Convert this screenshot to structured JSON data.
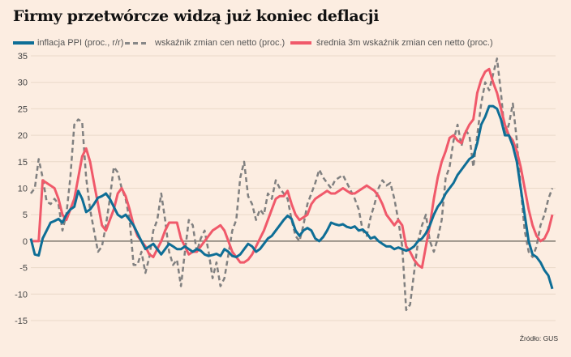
{
  "chart_data": {
    "type": "line",
    "title": "Firmy przetwórcze widzą już koniec deflacji",
    "source": "Źródło: GUS",
    "xlabel": "",
    "ylabel": "",
    "ylim": [
      -15,
      35
    ],
    "yticks": [
      35,
      30,
      25,
      20,
      15,
      10,
      5,
      0,
      -5,
      -10,
      -15
    ],
    "ytick_labels": [
      "35",
      "30",
      "25",
      "20",
      "15",
      "10",
      "5",
      "0",
      "-5",
      "-10",
      "-15"
    ],
    "grid": true,
    "legend_position": "top",
    "series": [
      {
        "name": "inflacja PPI (proc., r/r)",
        "color": "#0e6e96",
        "style": "solid",
        "values": [
          0.5,
          -2.5,
          -2.7,
          0.5,
          2,
          3.5,
          3.8,
          4.2,
          3.5,
          5,
          6,
          6.5,
          9.5,
          8,
          5.5,
          6,
          7,
          8.2,
          8.5,
          9,
          8,
          6.5,
          5,
          4.5,
          5,
          4,
          3,
          1.5,
          0,
          -1.5,
          -1,
          -0.5,
          -1.5,
          -2.5,
          -1.5,
          -0.5,
          -1,
          -1.5,
          -1.5,
          -1,
          -1.5,
          -2,
          -1.5,
          -1.8,
          -2.5,
          -2.8,
          -2.6,
          -2.4,
          -2.8,
          -1.5,
          -2,
          -2.8,
          -3,
          -2.5,
          -1.5,
          -0.5,
          -1,
          -2,
          -1.5,
          -0.5,
          0.5,
          1,
          2,
          3,
          4,
          4.8,
          4.2,
          2,
          1,
          2,
          2.5,
          2,
          0.5,
          0,
          0.8,
          2,
          3.5,
          3.2,
          3,
          3.2,
          2.7,
          2.5,
          2.8,
          2,
          2.2,
          1.5,
          0.5,
          0.8,
          0,
          -0.5,
          -1,
          -1,
          -1.5,
          -1.2,
          -1.5,
          -1.8,
          -1.5,
          -1,
          0,
          0.5,
          1.5,
          3,
          5,
          6.5,
          7.5,
          9,
          10,
          11,
          12.5,
          13.5,
          14.5,
          15.5,
          16,
          18.5,
          22,
          23.5,
          25.5,
          25.5,
          25,
          23,
          20,
          20,
          18,
          15,
          10,
          5,
          0,
          -2.5,
          -3,
          -4,
          -5.5,
          -6.5,
          -9
        ]
      },
      {
        "name": "wskaźnik zmian cen netto (proc.)",
        "color": "#808080",
        "style": "dashed",
        "values": [
          9,
          10,
          15.5,
          12,
          7.5,
          7,
          8,
          7,
          2,
          5,
          12,
          22,
          23,
          22.5,
          12,
          6,
          2,
          -2,
          -1,
          3,
          8,
          14,
          13,
          10,
          8,
          4,
          -4.5,
          -4.5,
          -2,
          -6,
          -3,
          2,
          4,
          9,
          4,
          -2,
          -4.5,
          -3.5,
          -8.5,
          -2,
          4,
          3,
          -2,
          0.5,
          2,
          -2,
          -7,
          -4,
          -8.5,
          -7,
          -2.5,
          2,
          4,
          12,
          15,
          8.5,
          7,
          4,
          6,
          5,
          9,
          8,
          11.5,
          10,
          9,
          8,
          4,
          1,
          0,
          3,
          7,
          9,
          11,
          13.5,
          12,
          11,
          10,
          11.5,
          12,
          12.5,
          11,
          9.5,
          8,
          6,
          2,
          1,
          4.5,
          7,
          10,
          11.5,
          10.5,
          11,
          8,
          4,
          -1,
          -13,
          -12,
          -6,
          0,
          3,
          5,
          0,
          -2,
          0.5,
          4,
          12,
          14,
          19,
          22,
          18,
          21,
          20,
          14,
          20,
          26,
          30,
          28.5,
          31.5,
          34.5,
          28,
          20,
          22,
          26,
          19,
          10,
          2,
          -2,
          -3,
          -1,
          3,
          5,
          8,
          10
        ]
      },
      {
        "name": "średnia 3m wskaźnik zmian cen netto (proc.)",
        "color": "#f0596a",
        "style": "solid",
        "values": [
          0,
          0,
          0,
          11.5,
          11,
          10.5,
          10,
          8,
          5,
          4,
          6,
          8,
          12,
          16,
          17.5,
          15,
          11,
          7,
          3,
          2,
          4,
          6,
          9,
          10,
          8.5,
          6,
          3,
          1,
          0,
          -1,
          -2.5,
          -3,
          -1.5,
          0,
          2,
          3.5,
          3.5,
          3.5,
          0.5,
          -1,
          -2.5,
          -2,
          -2,
          -1,
          0,
          1,
          2,
          2.5,
          3,
          2,
          0,
          -2,
          -3,
          -4,
          -4,
          -3.5,
          -2.5,
          -1,
          0.5,
          2,
          4,
          6,
          8,
          8.5,
          8.5,
          9.5,
          7,
          5,
          4,
          4.5,
          5,
          7,
          8,
          8.5,
          9,
          9.5,
          9,
          9,
          9.5,
          10,
          9.5,
          9,
          9,
          9.5,
          10,
          10.5,
          10,
          9.5,
          8.5,
          7,
          5,
          4,
          3,
          4,
          3,
          -1,
          -2,
          -3.5,
          -4.5,
          -5,
          -1,
          3,
          8,
          12,
          15,
          17,
          19.5,
          20,
          19,
          18.5,
          20.5,
          22,
          23,
          28,
          30.5,
          32,
          32.5,
          30,
          28,
          25,
          22,
          20,
          19,
          17,
          14,
          10,
          6,
          3,
          1,
          0,
          0.5,
          2,
          5
        ]
      }
    ]
  }
}
